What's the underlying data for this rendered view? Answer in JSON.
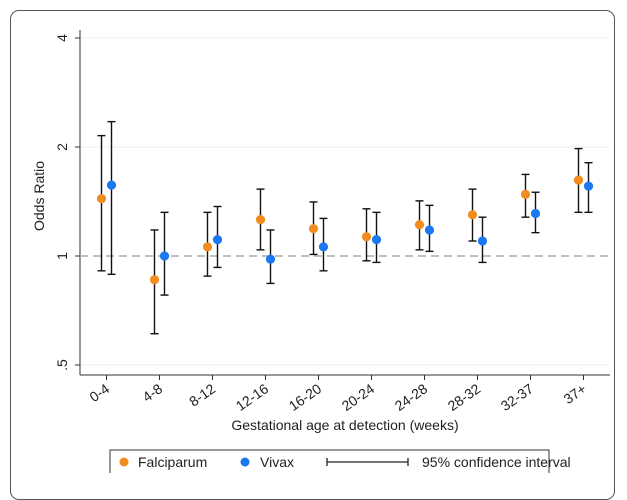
{
  "chart_data": {
    "type": "scatter",
    "title": "",
    "xlabel": "Gestational age at detection (weeks)",
    "ylabel": "Odds Ratio",
    "y_scale": "log",
    "ylim": [
      0.45,
      4.2
    ],
    "yticks": [
      0.5,
      1,
      2,
      4
    ],
    "ytick_labels": [
      ".5",
      "1",
      "2",
      "4"
    ],
    "reference_line": 1,
    "grid": "horizontal",
    "categories": [
      "0-4",
      "4-8",
      "8-12",
      "12-16",
      "16-20",
      "20-24",
      "24-28",
      "28-32",
      "32-37",
      "37+"
    ],
    "series": [
      {
        "name": "Falciparum",
        "color": "#f28c1e",
        "values": [
          1.44,
          0.86,
          1.06,
          1.26,
          1.19,
          1.13,
          1.22,
          1.3,
          1.48,
          1.62
        ],
        "ci_low": [
          0.91,
          0.61,
          0.88,
          1.04,
          1.01,
          0.97,
          1.04,
          1.1,
          1.28,
          1.32
        ],
        "ci_high": [
          2.15,
          1.18,
          1.32,
          1.53,
          1.41,
          1.35,
          1.42,
          1.53,
          1.68,
          1.98
        ]
      },
      {
        "name": "Vivax",
        "color": "#1a78f0",
        "values": [
          1.57,
          1.0,
          1.11,
          0.98,
          1.06,
          1.11,
          1.18,
          1.1,
          1.31,
          1.56
        ],
        "ci_low": [
          0.89,
          0.78,
          0.93,
          0.84,
          0.91,
          0.96,
          1.03,
          0.96,
          1.16,
          1.32
        ],
        "ci_high": [
          2.35,
          1.32,
          1.37,
          1.18,
          1.27,
          1.32,
          1.38,
          1.28,
          1.5,
          1.81
        ]
      }
    ],
    "legend": {
      "placement": "bottom",
      "ci_label": "95% confidence interval"
    }
  }
}
